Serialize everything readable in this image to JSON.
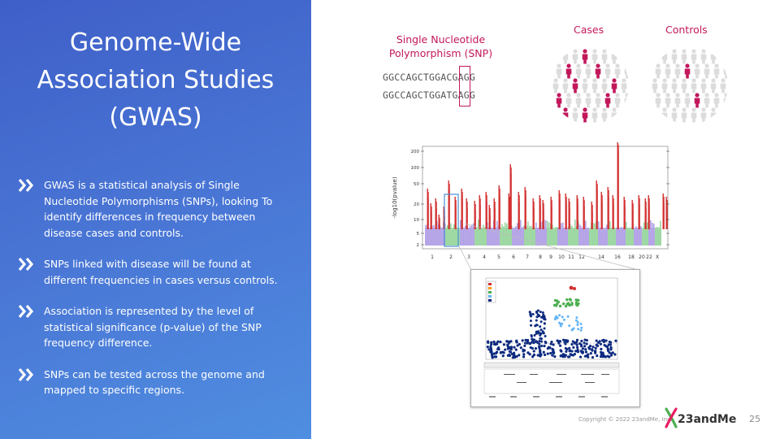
{
  "slide": {
    "title_lines": [
      "Genome-Wide",
      "Association Studies",
      "(GWAS)"
    ],
    "bullets": [
      "GWAS is a statistical analysis of Single Nucleotide Polymorphisms (SNPs), looking To identify differences in frequency between disease cases and controls.",
      "SNPs linked with disease will be found at different frequencies in cases versus controls.",
      "Association is represented by the level of statistical significance (p-value) of the SNP frequency difference.",
      "SNPs can be tested across the genome and mapped to specific regions."
    ]
  },
  "snp": {
    "title_line1": "Single Nucleotide",
    "title_line2": "Polymorphism (SNP)",
    "seq1": "GGCCAGCTGGACGAGG",
    "seq2": "GGCCAGCTGGATGAGG"
  },
  "groups": {
    "cases": "Cases",
    "controls": "Controls"
  },
  "colors": {
    "accent": "#c2185b",
    "significant": "#d32f2f",
    "chr_purple": "#b3a3e6",
    "chr_green": "#9bd7a0"
  },
  "manhattan": {
    "ylabel": "-log10(pvalue)",
    "yticks": [
      "200",
      "100",
      "50",
      "20",
      "10",
      "5",
      "2"
    ],
    "xticks": [
      "1",
      "2",
      "3",
      "4",
      "5",
      "6",
      "7",
      "8",
      "9",
      "10",
      "11",
      "12",
      "14",
      "16",
      "18",
      "20",
      "22",
      "X"
    ]
  },
  "footer": {
    "copyright": "Copyright © 2022 23andMe, Inc.",
    "logo": "23andMe",
    "page": "25"
  }
}
